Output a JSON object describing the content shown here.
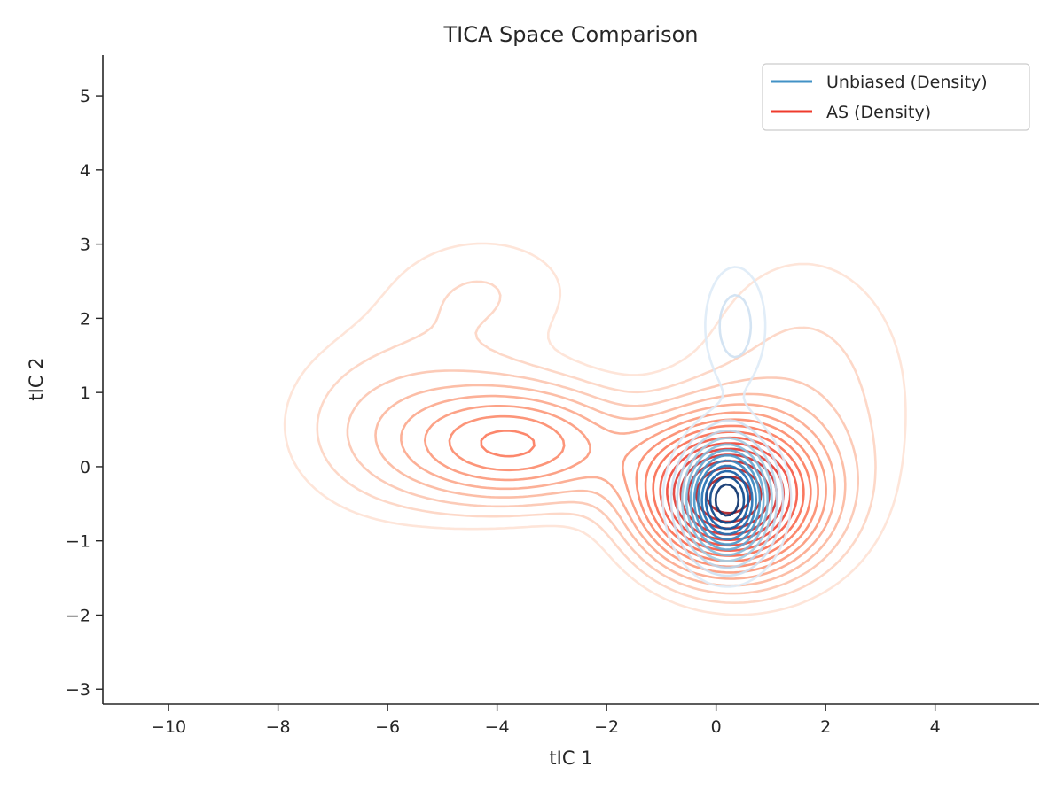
{
  "chart_data": {
    "type": "contour",
    "title": "TICA Space Comparison",
    "xlabel": "tIC 1",
    "ylabel": "tIC 2",
    "xlim": [
      -11.2,
      5.9
    ],
    "ylim": [
      -3.2,
      5.55
    ],
    "xticks": [
      -10,
      -8,
      -6,
      -4,
      -2,
      0,
      2,
      4
    ],
    "yticks": [
      -3,
      -2,
      -1,
      0,
      1,
      2,
      3,
      4,
      5
    ],
    "xtick_labels": [
      "−10",
      "−8",
      "−6",
      "−4",
      "−2",
      "0",
      "2",
      "4"
    ],
    "ytick_labels": [
      "−3",
      "−2",
      "−1",
      "0",
      "1",
      "2",
      "3",
      "4",
      "5"
    ],
    "grid": false,
    "legend_position": "top-right",
    "series": [
      {
        "name": "Unbiased (Density)",
        "color": "#4292c6",
        "colormap": [
          "#deebf7",
          "#c6dbef",
          "#9ecae1",
          "#6baed6",
          "#4292c6",
          "#2171b5",
          "#08519c",
          "#08306b"
        ],
        "components": [
          {
            "x": 0.2,
            "y": -0.45,
            "sx": 0.55,
            "sy": 0.55,
            "w": 1.0
          },
          {
            "x": 0.35,
            "y": 1.9,
            "sx": 0.45,
            "sy": 0.65,
            "w": 0.22
          }
        ],
        "levels": 12
      },
      {
        "name": "AS (Density)",
        "color": "#ef3b2c",
        "colormap": [
          "#fee0d2",
          "#fcbba1",
          "#fc9272",
          "#fb6a4a",
          "#ef3b2c",
          "#cb181d",
          "#a50f15"
        ],
        "components": [
          {
            "x": 0.2,
            "y": -0.4,
            "sx": 1.05,
            "sy": 0.65,
            "w": 1.0
          },
          {
            "x": -3.6,
            "y": 0.3,
            "sx": 1.4,
            "sy": 0.55,
            "w": 0.42
          },
          {
            "x": -6.0,
            "y": 0.6,
            "sx": 1.5,
            "sy": 0.95,
            "w": 0.14
          },
          {
            "x": -4.2,
            "y": 2.4,
            "sx": 1.4,
            "sy": 0.65,
            "w": 0.1
          },
          {
            "x": 1.6,
            "y": 0.9,
            "sx": 1.6,
            "sy": 1.6,
            "w": 0.13
          }
        ],
        "levels": 16
      }
    ]
  }
}
